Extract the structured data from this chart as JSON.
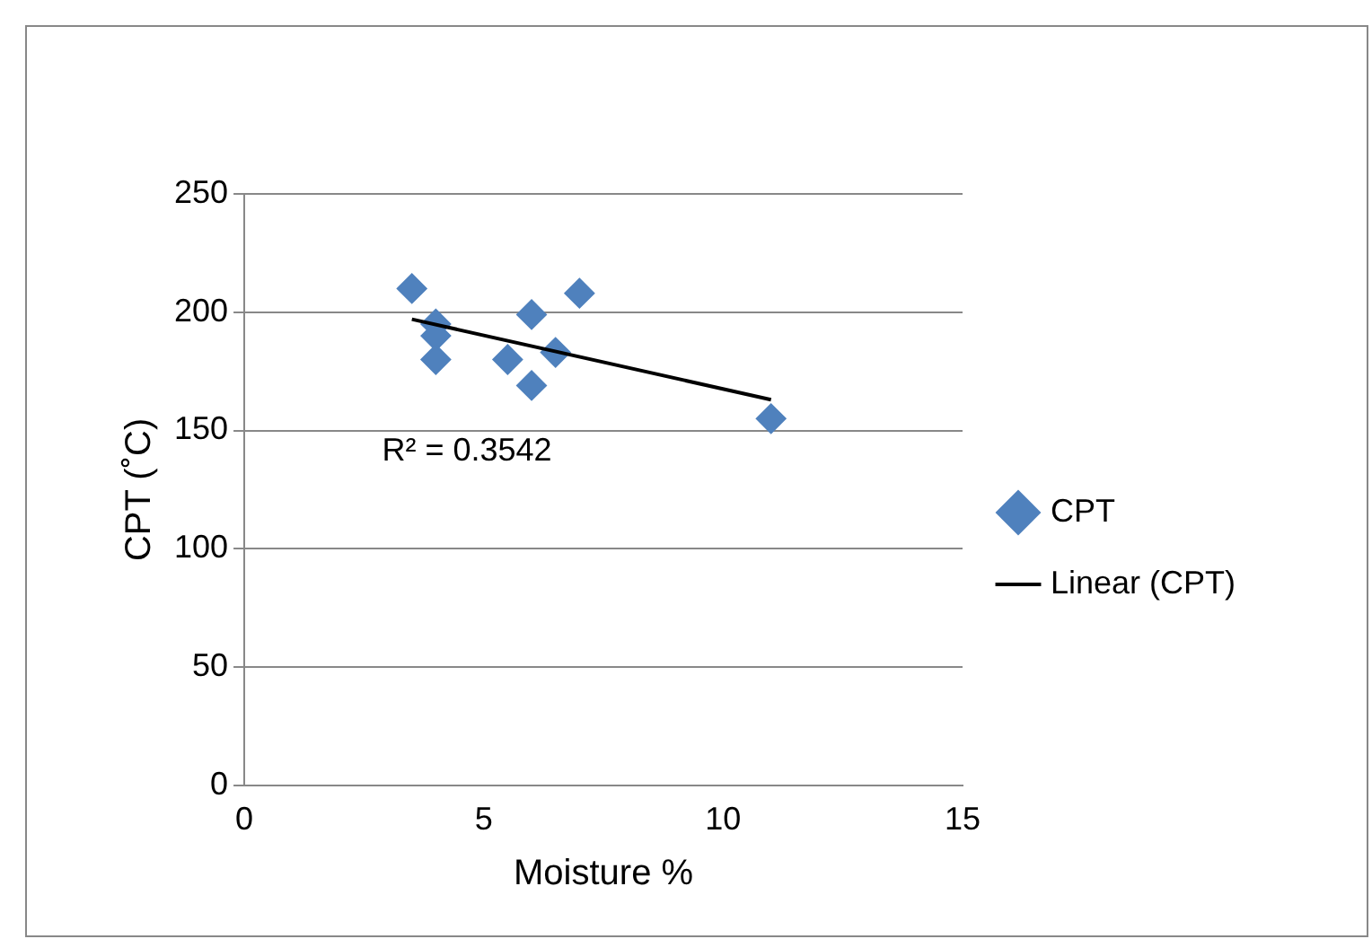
{
  "chart_data": {
    "type": "scatter",
    "xlabel": "Moisture %",
    "ylabel": "CPT (˚C)",
    "xlim": [
      0,
      15
    ],
    "xticks": [
      0,
      5,
      10,
      15
    ],
    "ylim": [
      0,
      250
    ],
    "yticks": [
      0,
      50,
      100,
      150,
      200,
      250
    ],
    "grid": "y",
    "legend": "right",
    "marker": "diamond",
    "series": [
      {
        "name": "CPT",
        "type": "scatter",
        "color": "#4f81bd",
        "x": [
          3.5,
          4,
          4,
          4,
          5.5,
          6,
          6,
          6.5,
          7,
          11
        ],
        "values": [
          210,
          195,
          190,
          180,
          180,
          199,
          169,
          183,
          208,
          155
        ]
      },
      {
        "name": "Linear (CPT)",
        "type": "line",
        "color": "#000000",
        "marker": "none",
        "line_style": "solid",
        "x": [
          3.5,
          11
        ],
        "values": [
          197,
          163
        ]
      }
    ],
    "annotations": [
      "R² = 0.3542"
    ]
  }
}
